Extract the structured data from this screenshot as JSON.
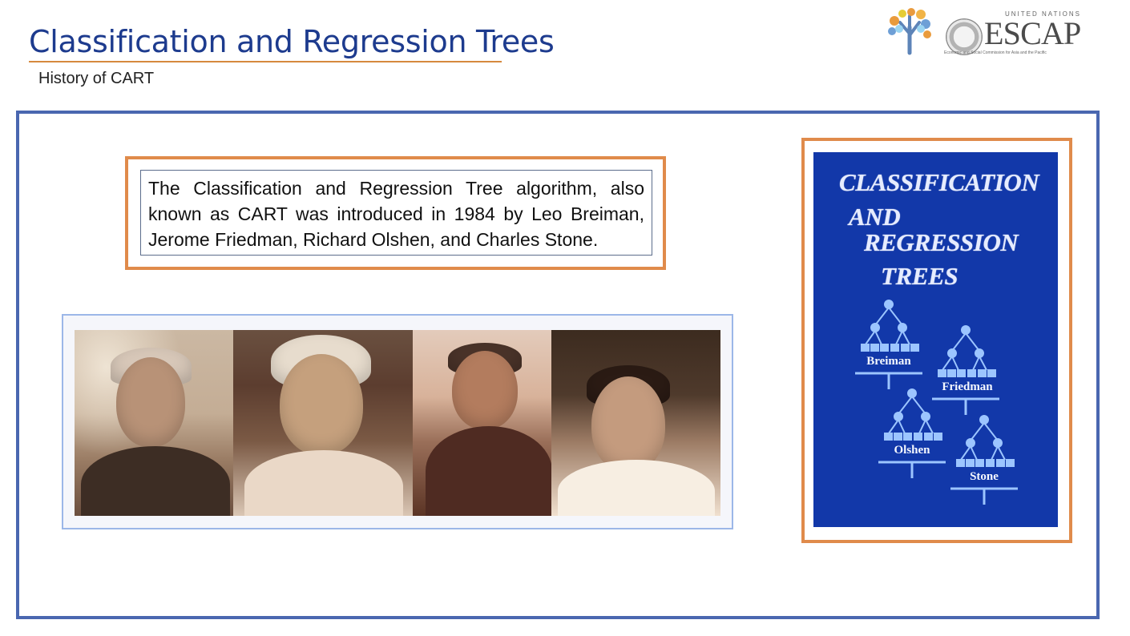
{
  "slide": {
    "title": "Classification and Regression Trees",
    "subtitle": "History of CART"
  },
  "logos": {
    "escap_top": "UNITED NATIONS",
    "escap": "ESCAP",
    "escap_caption": "Economic and Social Commission for Asia and the Pacific"
  },
  "intro": {
    "text": "The Classification and Regression Tree algorithm, also known as CART was introduced in 1984 by Leo Breiman, Jerome Friedman, Richard Olshen, and Charles Stone."
  },
  "book": {
    "title_lines": [
      "Classification",
      "And",
      "Regression",
      "Trees"
    ],
    "authors": [
      "Breiman",
      "Friedman",
      "Olshen",
      "Stone"
    ]
  },
  "colors": {
    "title": "#1d3b8e",
    "accent": "#e08b4b",
    "frame": "#4a67b0",
    "book_blue": "#1238a9"
  }
}
